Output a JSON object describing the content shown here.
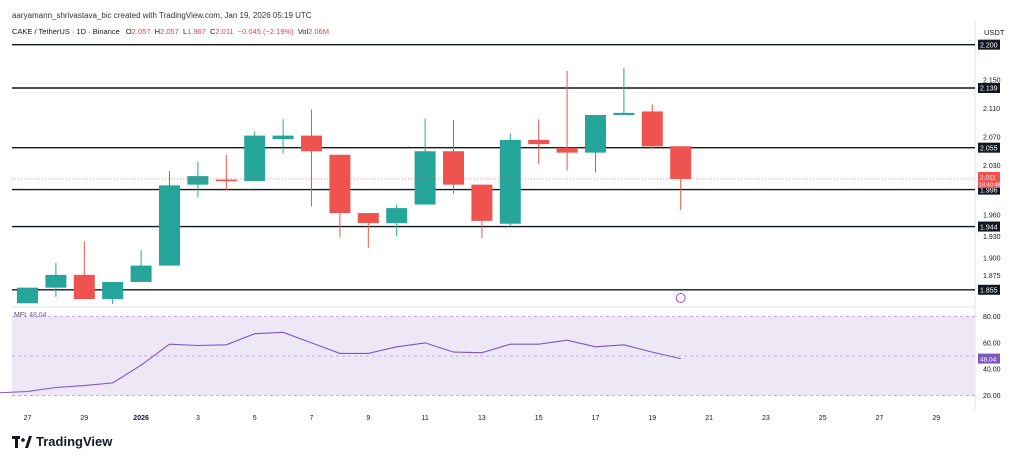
{
  "header": {
    "attribution": "aaryamann_shrivastava_bic created with TradingView.com, Jan 19, 2026 05:19 UTC"
  },
  "legend": {
    "symbol": "CAKE / TetherUS · 1D · Binance",
    "o_label": "O",
    "o_value": "2.057",
    "h_label": "H",
    "h_value": "2.057",
    "l_label": "L",
    "l_value": "1.967",
    "c_label": "C",
    "c_value": "2.011",
    "change": "−0.045 (−2.19%)",
    "vol_label": "Vol",
    "vol_value": "2.06M"
  },
  "currency": "USDT",
  "mfi": {
    "label": "MFI",
    "value": "48.04"
  },
  "brand": {
    "name": "TradingView"
  },
  "colors": {
    "up": "#26a69a",
    "down": "#ef5350",
    "mfi_line": "#7e57c2",
    "mfi_band": "#ede7f6"
  },
  "chart_data": [
    {
      "type": "candlestick",
      "title": "CAKE / TetherUS · 1D · Binance",
      "x": [
        "2025-12-27",
        "2025-12-28",
        "2025-12-29",
        "2025-12-30",
        "2025-12-31",
        "2026-01-01",
        "2026-01-02",
        "2026-01-03",
        "2026-01-04",
        "2026-01-05",
        "2026-01-06",
        "2026-01-07",
        "2026-01-08",
        "2026-01-09",
        "2026-01-10",
        "2026-01-11",
        "2026-01-12",
        "2026-01-13",
        "2026-01-14",
        "2026-01-15",
        "2026-01-16",
        "2026-01-17",
        "2026-01-18",
        "2026-01-19"
      ],
      "ohlc": [
        [
          1.836,
          1.858,
          1.836,
          1.858
        ],
        [
          1.858,
          1.893,
          1.845,
          1.876
        ],
        [
          1.876,
          1.923,
          1.842,
          1.842
        ],
        [
          1.842,
          1.866,
          1.835,
          1.866
        ],
        [
          1.866,
          1.911,
          1.866,
          1.889
        ],
        [
          1.889,
          2.022,
          1.889,
          2.002
        ],
        [
          2.003,
          2.035,
          1.985,
          2.015
        ],
        [
          2.01,
          2.045,
          1.995,
          2.008
        ],
        [
          2.008,
          2.078,
          2.008,
          2.072
        ],
        [
          2.067,
          2.095,
          2.047,
          2.072
        ],
        [
          2.072,
          2.109,
          1.972,
          2.05
        ],
        [
          2.045,
          2.045,
          1.929,
          1.963
        ],
        [
          1.963,
          1.963,
          1.914,
          1.949
        ],
        [
          1.949,
          1.975,
          1.93,
          1.97
        ],
        [
          1.975,
          2.096,
          1.975,
          2.05
        ],
        [
          2.05,
          2.094,
          1.99,
          2.003
        ],
        [
          2.003,
          2.003,
          1.928,
          1.952
        ],
        [
          1.948,
          2.075,
          1.944,
          2.066
        ],
        [
          2.066,
          2.095,
          2.032,
          2.06
        ],
        [
          2.055,
          2.163,
          2.023,
          2.048
        ],
        [
          2.048,
          2.1,
          2.02,
          2.101
        ],
        [
          2.101,
          2.167,
          2.101,
          2.104
        ],
        [
          2.106,
          2.116,
          2.054,
          2.057
        ],
        [
          2.057,
          2.057,
          1.967,
          2.011
        ]
      ],
      "horizontal_levels": [
        2.2,
        2.139,
        2.055,
        1.996,
        1.944,
        1.855
      ],
      "last_price": {
        "value": "2.011",
        "countdown": "18:40:48"
      },
      "ylim": [
        1.835,
        2.215
      ],
      "y_ticks": [
        "2.150",
        "2.110",
        "2.070",
        "2.030",
        "1.960",
        "1.930",
        "1.900",
        "1.875"
      ],
      "level_labels": [
        "2.200",
        "2.139",
        "2.055",
        "1.996",
        "1.944",
        "1.855"
      ],
      "x_ticks": [
        "27",
        "29",
        "2026",
        "3",
        "5",
        "7",
        "9",
        "11",
        "13",
        "15",
        "17",
        "19",
        "21",
        "23",
        "25",
        "27",
        "29"
      ]
    },
    {
      "type": "line",
      "title": "MFI",
      "x": [
        "2025-12-26",
        "2025-12-27",
        "2025-12-28",
        "2025-12-29",
        "2025-12-30",
        "2025-12-31",
        "2026-01-01",
        "2026-01-02",
        "2026-01-03",
        "2026-01-04",
        "2026-01-05",
        "2026-01-06",
        "2026-01-07",
        "2026-01-08",
        "2026-01-09",
        "2026-01-10",
        "2026-01-11",
        "2026-01-12",
        "2026-01-13",
        "2026-01-14",
        "2026-01-15",
        "2026-01-16",
        "2026-01-17",
        "2026-01-18",
        "2026-01-19"
      ],
      "values": [
        22,
        23,
        26,
        27.5,
        29.5,
        43,
        59,
        58,
        58.5,
        67,
        68,
        60,
        52,
        52,
        57,
        60,
        53,
        52.5,
        59,
        59,
        62,
        57,
        58.5,
        53,
        48.04
      ],
      "ylim": [
        15,
        85
      ],
      "y_ticks": [
        "80.00",
        "60.00",
        "40.00",
        "20.00"
      ],
      "band": [
        20,
        80
      ],
      "midline": 50,
      "last_value": "48.04"
    }
  ]
}
